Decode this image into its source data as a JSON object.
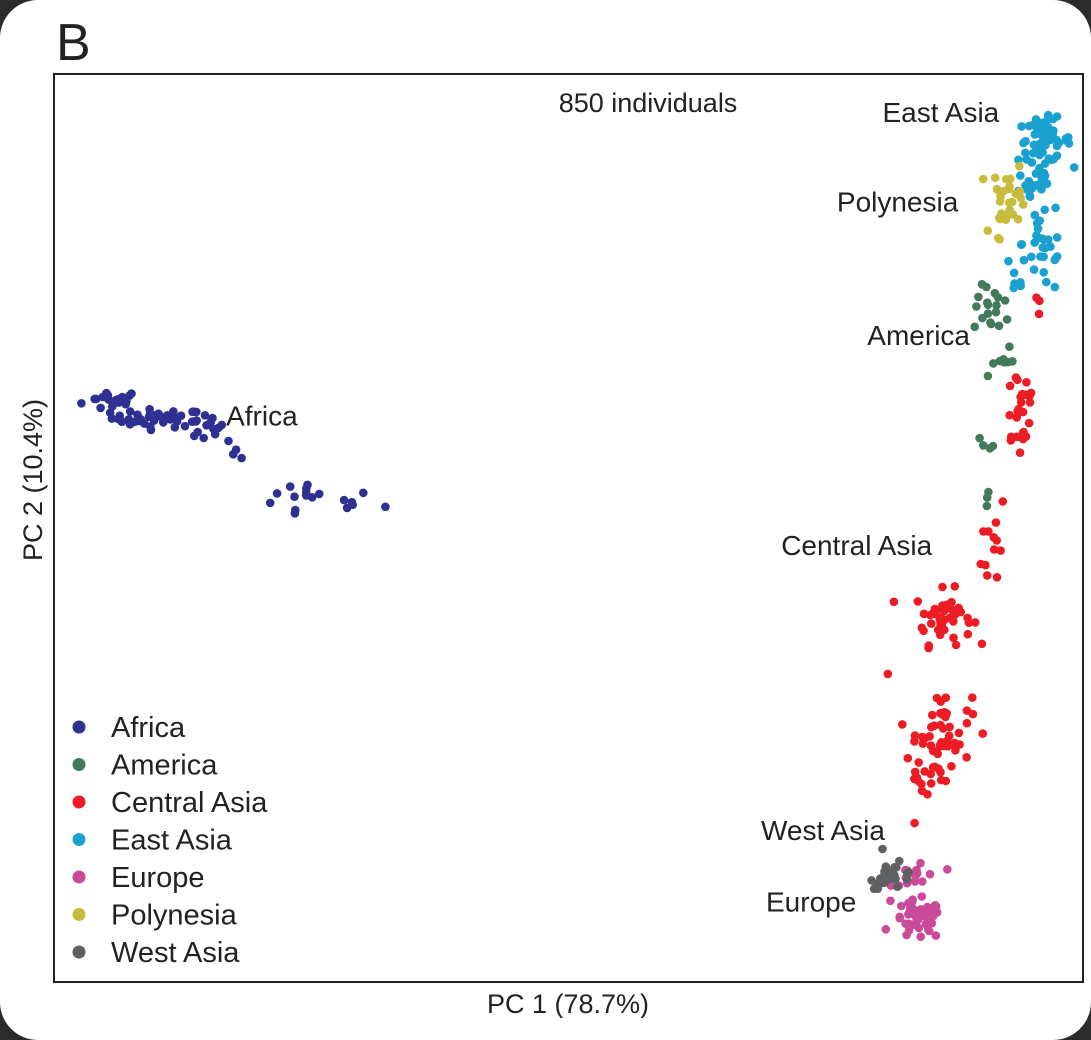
{
  "panel_letter": "B",
  "chart_data": {
    "type": "scatter",
    "title": "",
    "annotation": "850 individuals",
    "xlabel": "PC 1 (78.7%)",
    "ylabel": "PC 2 (10.4%)",
    "xlim": [
      0,
      100
    ],
    "ylim": [
      0,
      100
    ],
    "grid": false,
    "legend_position": "bottom-left",
    "series": [
      {
        "name": "Africa",
        "color": "#2e3192",
        "clusters": [
          {
            "cx": 5,
            "cy": 64.3,
            "sx": 1.5,
            "sy": 0.6,
            "n": 18
          },
          {
            "cx": 9.5,
            "cy": 62.3,
            "sx": 2.3,
            "sy": 0.5,
            "n": 40
          },
          {
            "cx": 14,
            "cy": 61.3,
            "sx": 1,
            "sy": 0.8,
            "n": 14
          },
          {
            "cx": 17,
            "cy": 58.5,
            "sx": 0.9,
            "sy": 0.5,
            "n": 4
          },
          {
            "cx": 24.5,
            "cy": 53,
            "sx": 3.5,
            "sy": 1.1,
            "n": 18
          }
        ]
      },
      {
        "name": "America",
        "color": "#427a5a",
        "clusters": [
          {
            "cx": 92,
            "cy": 74.5,
            "sx": 1,
            "sy": 1.3,
            "n": 18
          },
          {
            "cx": 92.5,
            "cy": 69,
            "sx": 0.7,
            "sy": 1.4,
            "n": 8
          },
          {
            "cx": 91.5,
            "cy": 59,
            "sx": 0.4,
            "sy": 1,
            "n": 4
          },
          {
            "cx": 91,
            "cy": 53,
            "sx": 0.3,
            "sy": 0.7,
            "n": 3
          }
        ]
      },
      {
        "name": "Central Asia",
        "color": "#ed1c24",
        "clusters": [
          {
            "cx": 94.5,
            "cy": 63.5,
            "sx": 0.9,
            "sy": 3,
            "n": 26
          },
          {
            "cx": 96.5,
            "cy": 75,
            "sx": 0.4,
            "sy": 0.8,
            "n": 3
          },
          {
            "cx": 92,
            "cy": 48.5,
            "sx": 0.6,
            "sy": 3,
            "n": 12
          },
          {
            "cx": 87,
            "cy": 40,
            "sx": 1.4,
            "sy": 1.5,
            "n": 45
          },
          {
            "cx": 87,
            "cy": 27.5,
            "sx": 1.4,
            "sy": 2,
            "n": 45
          },
          {
            "cx": 85.5,
            "cy": 22,
            "sx": 1.3,
            "sy": 1.5,
            "n": 20
          },
          {
            "cx": 81.5,
            "cy": 34,
            "sx": 0.3,
            "sy": 0.3,
            "n": 1
          }
        ]
      },
      {
        "name": "East Asia",
        "color": "#1aa1cf",
        "clusters": [
          {
            "cx": 97,
            "cy": 93.5,
            "sx": 1.3,
            "sy": 1.2,
            "n": 55
          },
          {
            "cx": 96,
            "cy": 88.5,
            "sx": 1,
            "sy": 1.2,
            "n": 20
          },
          {
            "cx": 97,
            "cy": 82,
            "sx": 1.1,
            "sy": 3,
            "n": 30
          },
          {
            "cx": 94,
            "cy": 78,
            "sx": 0.6,
            "sy": 1.3,
            "n": 7
          }
        ]
      },
      {
        "name": "Europe",
        "color": "#c94a99",
        "clusters": [
          {
            "cx": 84.5,
            "cy": 6,
            "sx": 1.2,
            "sy": 1.1,
            "n": 50
          },
          {
            "cx": 84.5,
            "cy": 11,
            "sx": 1.2,
            "sy": 1.1,
            "n": 16
          }
        ]
      },
      {
        "name": "Polynesia",
        "color": "#c8bc3c",
        "clusters": [
          {
            "cx": 93.5,
            "cy": 87.5,
            "sx": 0.9,
            "sy": 1.6,
            "n": 25
          },
          {
            "cx": 92.5,
            "cy": 83.5,
            "sx": 0.5,
            "sy": 0.8,
            "n": 5
          }
        ]
      },
      {
        "name": "West Asia",
        "color": "#5f6062",
        "clusters": [
          {
            "cx": 82,
            "cy": 11,
            "sx": 1.1,
            "sy": 0.7,
            "n": 25
          },
          {
            "cx": 80.8,
            "cy": 14,
            "sx": 0.3,
            "sy": 0.3,
            "n": 1
          }
        ]
      }
    ],
    "cluster_labels": [
      {
        "text": "Africa",
        "x": 16.2,
        "y": 61.5
      },
      {
        "text": "East Asia",
        "x": 81,
        "y": 95.5
      },
      {
        "text": "Polynesia",
        "x": 76.5,
        "y": 85.5
      },
      {
        "text": "America",
        "x": 79.5,
        "y": 70.5
      },
      {
        "text": "Central Asia",
        "x": 71,
        "y": 47
      },
      {
        "text": "West Asia",
        "x": 69,
        "y": 15
      },
      {
        "text": "Europe",
        "x": 69.5,
        "y": 7
      }
    ]
  }
}
